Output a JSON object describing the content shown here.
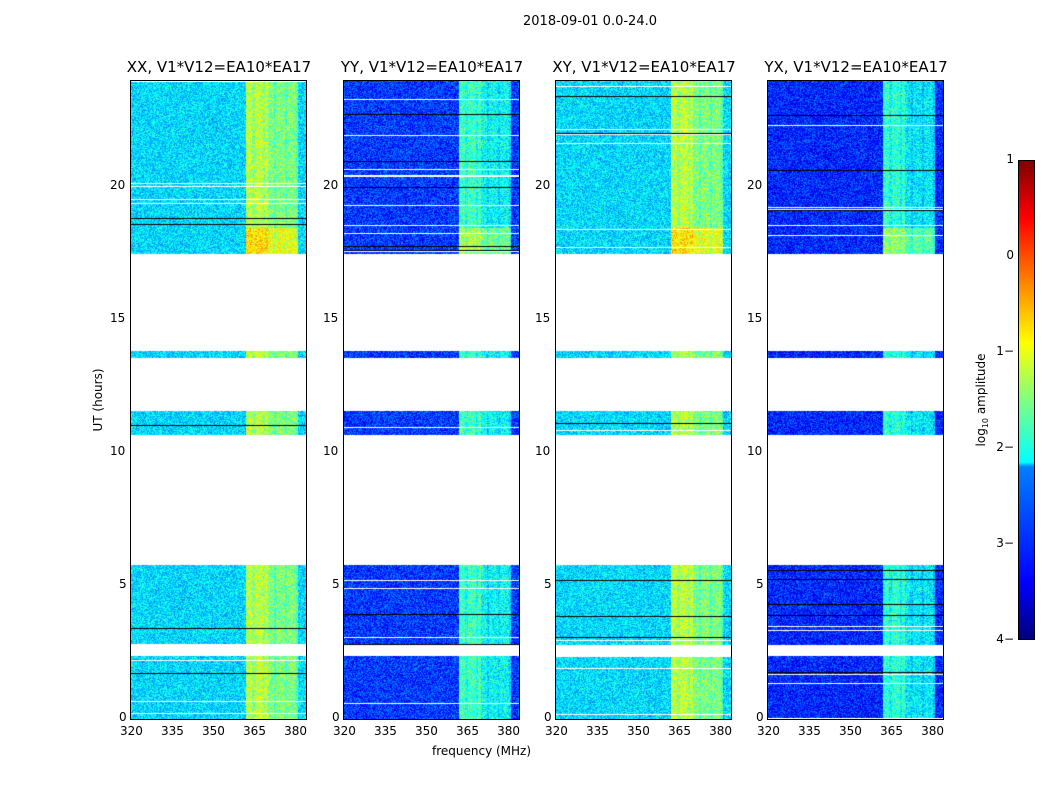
{
  "chart_data": {
    "type": "heatmap",
    "title": "2018-09-01 0.0-24.0",
    "xlabel": "frequency (MHz)",
    "ylabel": "UT (hours)",
    "xlim": [
      320,
      384
    ],
    "ylim": [
      0,
      24
    ],
    "xticks": [
      320,
      335,
      350,
      365,
      380
    ],
    "yticks": [
      0,
      5,
      10,
      15,
      20
    ],
    "data_segments_hours": [
      [
        0,
        2.4
      ],
      [
        2.8,
        5.8
      ],
      [
        10.7,
        11.6
      ],
      [
        13.6,
        13.85
      ],
      [
        17.5,
        24
      ]
    ],
    "bright_band_mhz": [
      362,
      381
    ],
    "panels": [
      {
        "title": "XX, V1*V12=EA10*EA17",
        "base_log_amp": -2.3,
        "band_log_amp": -1.2
      },
      {
        "title": "YY, V1*V12=EA10*EA17",
        "base_log_amp": -3.1,
        "band_log_amp": -1.8
      },
      {
        "title": "XY, V1*V12=EA10*EA17",
        "base_log_amp": -2.3,
        "band_log_amp": -1.2
      },
      {
        "title": "YX, V1*V12=EA10*EA17",
        "base_log_amp": -3.2,
        "band_log_amp": -1.9
      }
    ],
    "colorbar": {
      "label": "log10 amplitude",
      "label_main": "log",
      "label_sub": "10",
      "label_rest": " amplitude",
      "range": [
        -4,
        1
      ],
      "ticks": [
        "1",
        "0",
        "−1",
        "−2",
        "−3",
        "−4"
      ],
      "colormap": "jet"
    }
  }
}
